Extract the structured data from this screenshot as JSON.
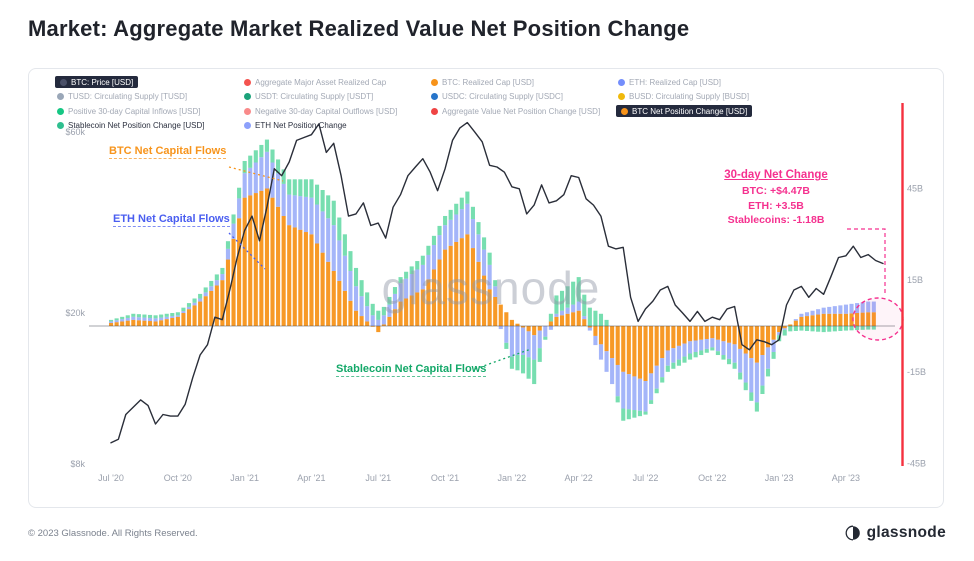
{
  "page": {
    "title": "Market: Aggregate Market Realized Value Net Position Change",
    "watermark": "glassnode",
    "footer_copyright": "© 2023 Glassnode. All Rights Reserved.",
    "footer_brand": "glassnode"
  },
  "legend": {
    "rows": [
      [
        {
          "label": "BTC: Price [USD]",
          "dot": "#4a5068",
          "style": "pill"
        },
        {
          "label": "Aggregate Major Asset Realized Cap",
          "dot": "#f4534f",
          "style": "muted"
        },
        {
          "label": "BTC: Realized Cap [USD]",
          "dot": "#f7931a",
          "style": "muted"
        },
        {
          "label": "ETH: Realized Cap [USD]",
          "dot": "#748efc",
          "style": "muted"
        }
      ],
      [
        {
          "label": "TUSD: Circulating Supply [TUSD]",
          "dot": "#9aa7b8",
          "style": "muted"
        },
        {
          "label": "USDT: Circulating Supply [USDT]",
          "dot": "#1ba27a",
          "style": "muted"
        },
        {
          "label": "USDC: Circulating Supply [USDC]",
          "dot": "#2775ca",
          "style": "muted"
        },
        {
          "label": "BUSD: Circulating Supply [BUSD]",
          "dot": "#f0b90b",
          "style": "muted"
        }
      ],
      [
        {
          "label": "Positive 30-day Capital Inflows [USD]",
          "dot": "#16c784",
          "style": "muted"
        },
        {
          "label": "Negative 30-day Capital Outflows [USD]",
          "dot": "#f98a8a",
          "style": "muted"
        },
        {
          "label": "Aggregate Value Net Position Change [USD]",
          "dot": "#ef4444",
          "style": "muted"
        },
        {
          "label": "BTC Net Position Change [USD]",
          "dot": "#f7931a",
          "style": "pill"
        }
      ],
      [
        {
          "label": "Stablecoin Net Position Change [USD]",
          "dot": "#2fbf8f",
          "style": "active"
        },
        {
          "label": "ETH Net Position Change",
          "dot": "#8ca0fb",
          "style": "active"
        }
      ]
    ]
  },
  "annotations": {
    "btc_flows": {
      "text": "BTC Net Capital Flows",
      "color": "#f7941c"
    },
    "eth_flows": {
      "text": "ETH Net Capital Flows",
      "color": "#4a5ef0"
    },
    "stable_flows": {
      "text": "Stablecoin Net Capital Flows",
      "color": "#14a869"
    },
    "net_change": {
      "title": "30-day Net Change",
      "lines": [
        "BTC: +$4.47B",
        "ETH: +3.5B",
        "Stablecoins: -1.18B"
      ],
      "color": "#f5318f"
    }
  },
  "chart_data": {
    "type": "mixed",
    "title": "Aggregate Market Realized Value Net Position Change",
    "price_axis": {
      "scale": "log",
      "side": "left",
      "ticks": [
        "$60k",
        "$20k",
        "$8k"
      ],
      "tick_values": [
        60,
        20,
        8
      ],
      "unit": "USD"
    },
    "flow_axis": {
      "side": "right",
      "ticks": [
        "45B",
        "15B",
        "-15B",
        "-45B"
      ],
      "tick_values": [
        45,
        15,
        -15,
        -45
      ],
      "unit": "USD billions"
    },
    "x_ticks": [
      {
        "label": "Jul '20",
        "month_index": 0
      },
      {
        "label": "Oct '20",
        "month_index": 3
      },
      {
        "label": "Jan '21",
        "month_index": 6
      },
      {
        "label": "Apr '21",
        "month_index": 9
      },
      {
        "label": "Jul '21",
        "month_index": 12
      },
      {
        "label": "Oct '21",
        "month_index": 15
      },
      {
        "label": "Jan '22",
        "month_index": 18
      },
      {
        "label": "Apr '22",
        "month_index": 21
      },
      {
        "label": "Jul '22",
        "month_index": 24
      },
      {
        "label": "Oct '22",
        "month_index": 27
      },
      {
        "label": "Jan '23",
        "month_index": 30
      },
      {
        "label": "Apr '23",
        "month_index": 33
      }
    ],
    "months": [
      "2020-07",
      "2020-08",
      "2020-09",
      "2020-10",
      "2020-11",
      "2020-12",
      "2021-01",
      "2021-02",
      "2021-03",
      "2021-04",
      "2021-05",
      "2021-06",
      "2021-07",
      "2021-08",
      "2021-09",
      "2021-10",
      "2021-11",
      "2021-12",
      "2022-01",
      "2022-02",
      "2022-03",
      "2022-04",
      "2022-05",
      "2022-06",
      "2022-07",
      "2022-08",
      "2022-09",
      "2022-10",
      "2022-11",
      "2022-12",
      "2023-01",
      "2023-02",
      "2023-03",
      "2023-04",
      "2023-05"
    ],
    "series": [
      {
        "name": "BTC Net Position Change [USD]",
        "type": "bar",
        "color": "#f7931a",
        "opacity": 0.95,
        "unit": "B USD",
        "values": [
          1,
          2,
          1.5,
          3,
          8,
          15,
          42,
          45,
          33,
          30,
          18,
          5,
          -2,
          8,
          12,
          25,
          30,
          12,
          2,
          -3,
          3,
          5,
          -6,
          -15,
          -18,
          -8,
          -5,
          -4,
          -6,
          -12,
          -2,
          3,
          4,
          4,
          4.5
        ]
      },
      {
        "name": "ETH Net Position Change",
        "type": "bar",
        "color": "#8da2f8",
        "opacity": 0.8,
        "unit": "B USD",
        "values": [
          0.5,
          1,
          1,
          0.5,
          1,
          2,
          8,
          12,
          10,
          12,
          15,
          8,
          2,
          6,
          8,
          8,
          10,
          8,
          -10,
          -8,
          1,
          3,
          -5,
          -12,
          -10,
          -5,
          -4,
          -3,
          -6,
          -13,
          -1,
          1,
          2,
          3,
          3.5
        ]
      },
      {
        "name": "Stablecoin Net Position Change [USD]",
        "type": "bar",
        "color": "#5fd8a2",
        "opacity": 0.85,
        "unit": "B USD",
        "values": [
          0.5,
          1,
          1,
          1,
          1.5,
          2,
          4,
          4,
          5,
          6,
          8,
          6,
          3,
          2,
          3,
          3,
          4,
          4,
          -4,
          -8,
          6,
          8,
          4,
          -4,
          -1,
          -2,
          -2,
          -1,
          -2,
          -3,
          -2,
          -1.5,
          -2,
          -1.5,
          -1.18
        ]
      },
      {
        "name": "BTC: Price [USD]",
        "type": "line",
        "color": "#2a2e39",
        "unit": "k USD",
        "points_per_month": 3,
        "values": [
          9.1,
          9.3,
          10.8,
          11.3,
          11.8,
          11.4,
          10.2,
          10.8,
          10.7,
          10.7,
          11.5,
          13.5,
          15.5,
          16.5,
          19.5,
          19.2,
          23,
          28,
          33,
          36,
          31,
          38,
          48,
          46,
          50,
          57,
          58,
          59,
          63,
          53,
          56,
          46,
          36,
          36.5,
          39,
          34,
          34.5,
          31.5,
          38,
          41,
          46,
          48.5,
          51,
          47,
          42,
          48,
          57,
          61.5,
          63.5,
          60,
          56.5,
          49,
          48.5,
          47,
          43,
          42.5,
          36.5,
          38.5,
          43.5,
          39,
          39.5,
          41,
          46,
          45.5,
          40,
          38.5,
          36,
          30,
          29.5,
          29.8,
          22,
          19,
          20.5,
          21.5,
          23,
          23.5,
          21,
          20,
          19,
          20.2,
          19,
          19.5,
          19.2,
          20.5,
          20.8,
          16.5,
          16,
          17,
          16.8,
          16.5,
          17,
          21,
          23,
          23.5,
          22,
          23.2,
          22.4,
          25,
          28,
          28.3,
          30,
          28,
          28.5,
          27.5,
          27
        ]
      }
    ],
    "legend_position": "top",
    "grid": false,
    "highlight": {
      "shape": "dashed-ellipse",
      "color": "#f5318f",
      "region": "Apr-May 2023 bars"
    },
    "right_edge_marker": {
      "shape": "vertical-line",
      "color": "#f5303e"
    }
  }
}
